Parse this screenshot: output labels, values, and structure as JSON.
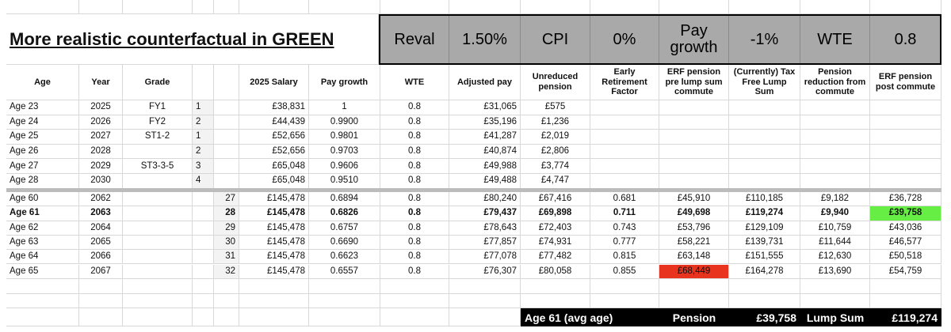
{
  "title": "More realistic counterfactual in GREEN",
  "params": [
    {
      "label": "Reval",
      "value": "1.50%"
    },
    {
      "label": "CPI",
      "value": "0%"
    },
    {
      "label": "Pay growth",
      "value": "-1%"
    },
    {
      "label": "WTE",
      "value": "0.8"
    }
  ],
  "table": {
    "headers": [
      "Age",
      "Year",
      "Grade",
      null,
      null,
      "2025 Salary",
      "Pay growth",
      "WTE",
      "Adjusted pay",
      "Unreduced pension",
      "Early Retirement Factor",
      "ERF pension pre lump sum commute",
      "(Currently) Tax Free Lump Sum",
      "Pension reduction from commute",
      "ERF pension post commute"
    ],
    "rows": [
      [
        "Age 23",
        "2025",
        "FY1",
        "1",
        null,
        "£38,831",
        "1",
        "0.8",
        "£31,065",
        "£575",
        null,
        null,
        null,
        null,
        null
      ],
      [
        "Age 24",
        "2026",
        "FY2",
        "2",
        null,
        "£44,439",
        "0.9900",
        "0.8",
        "£35,196",
        "£1,236",
        null,
        null,
        null,
        null,
        null
      ],
      [
        "Age 25",
        "2027",
        "ST1-2",
        "1",
        null,
        "£52,656",
        "0.9801",
        "0.8",
        "£41,287",
        "£2,019",
        null,
        null,
        null,
        null,
        null
      ],
      [
        "Age 26",
        "2028",
        null,
        "2",
        null,
        "£52,656",
        "0.9703",
        "0.8",
        "£40,874",
        "£2,806",
        null,
        null,
        null,
        null,
        null
      ],
      [
        "Age 27",
        "2029",
        "ST3-3-5",
        "3",
        null,
        "£65,048",
        "0.9606",
        "0.8",
        "£49,988",
        "£3,774",
        null,
        null,
        null,
        null,
        null
      ],
      [
        "Age 28",
        "2030",
        null,
        "4",
        null,
        "£65,048",
        "0.9510",
        "0.8",
        "£49,488",
        "£4,747",
        null,
        null,
        null,
        null,
        null
      ],
      [
        "Age 60",
        "2062",
        null,
        null,
        "27",
        "£145,478",
        "0.6894",
        "0.8",
        "£80,240",
        "£67,416",
        "0.681",
        "£45,910",
        "£110,185",
        "£9,182",
        "£36,728"
      ],
      [
        "Age 61",
        "2063",
        null,
        null,
        "28",
        "£145,478",
        "0.6826",
        "0.8",
        "£79,437",
        "£69,898",
        "0.711",
        "£49,698",
        "£119,274",
        "£9,940",
        "£39,758"
      ],
      [
        "Age 62",
        "2064",
        null,
        null,
        "29",
        "£145,478",
        "0.6757",
        "0.8",
        "£78,643",
        "£72,403",
        "0.743",
        "£53,796",
        "£129,109",
        "£10,759",
        "£43,036"
      ],
      [
        "Age 63",
        "2065",
        null,
        null,
        "30",
        "£145,478",
        "0.6690",
        "0.8",
        "£77,857",
        "£74,931",
        "0.777",
        "£58,221",
        "£139,731",
        "£11,644",
        "£46,577"
      ],
      [
        "Age 64",
        "2066",
        null,
        null,
        "31",
        "£145,478",
        "0.6623",
        "0.8",
        "£77,078",
        "£77,482",
        "0.815",
        "£63,148",
        "£151,555",
        "£12,630",
        "£50,518"
      ],
      [
        "Age 65",
        "2067",
        null,
        null,
        "32",
        "£145,478",
        "0.6557",
        "0.8",
        "£76,307",
        "£80,058",
        "0.855",
        "£68,449",
        "£164,278",
        "£13,690",
        "£54,759"
      ]
    ],
    "bold_row": 7,
    "highlights": [
      {
        "row": 7,
        "col": 14,
        "color": "#66ee44"
      },
      {
        "row": 11,
        "col": 11,
        "color": "#e8331f"
      }
    ]
  },
  "summary": {
    "label": "Age 61 (avg age)",
    "pension_label": "Pension",
    "pension": "£39,758",
    "lump_label": "Lump Sum",
    "lump": "£119,274"
  }
}
